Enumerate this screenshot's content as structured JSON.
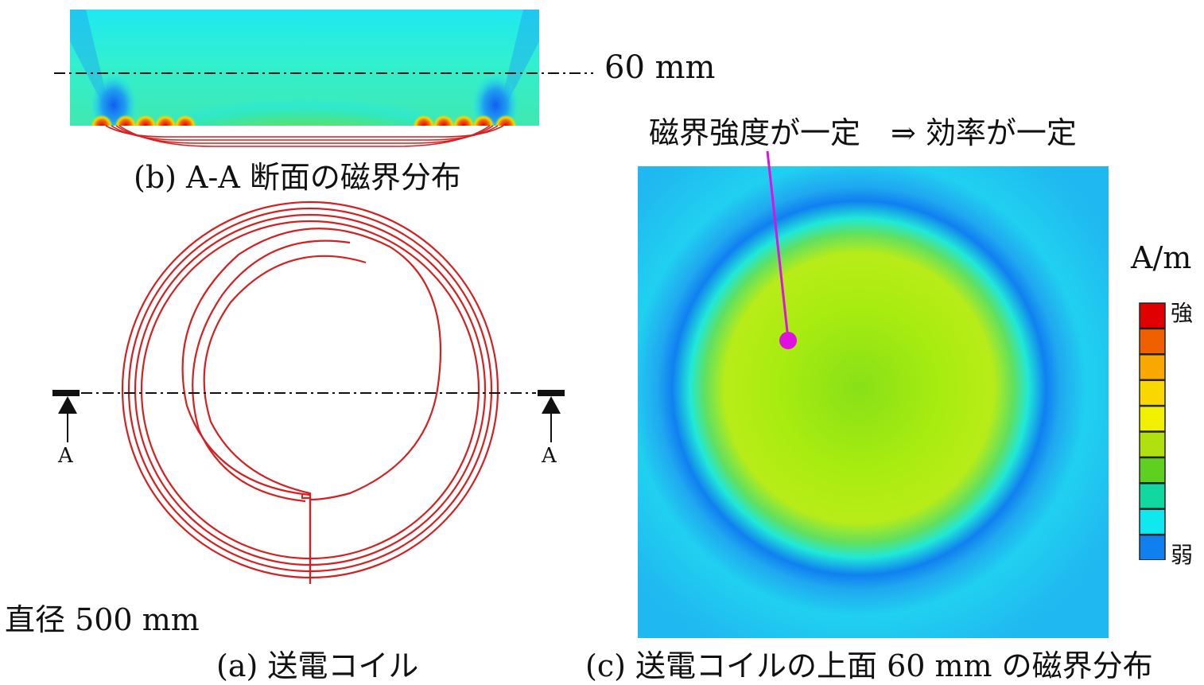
{
  "panel_b": {
    "height_label": "60 mm",
    "caption": "(b) A-A 断面の磁界分布"
  },
  "panel_a": {
    "section_marker_left": "A",
    "section_marker_right": "A",
    "diameter_label": "直径 500 mm",
    "caption": "(a)  送電コイル"
  },
  "panel_c": {
    "annotation": "磁界強度が一定　⇒ 効率が一定",
    "caption": "(c)  送電コイルの上面 60 mm の磁界分布"
  },
  "colorbar": {
    "unit": "A/m",
    "high_label": "強",
    "low_label": "弱",
    "colors": [
      "#e00000",
      "#f06000",
      "#f8a800",
      "#f8d800",
      "#f0f000",
      "#b0e010",
      "#60d020",
      "#10d8a0",
      "#10e8f0",
      "#1080f0"
    ]
  },
  "colors": {
    "coil": "#d42020",
    "pointer": "#e010e0"
  }
}
